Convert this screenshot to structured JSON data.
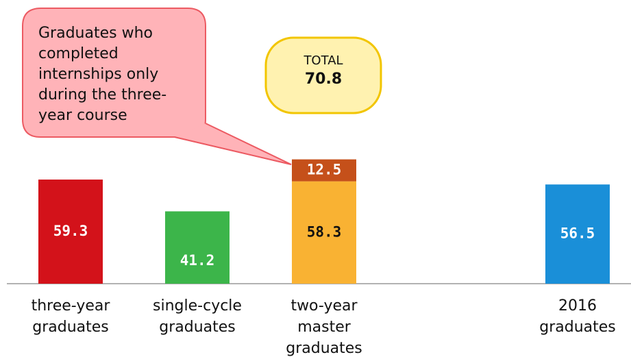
{
  "chart_data": {
    "type": "stacked_bar",
    "categories": [
      "three-year graduates",
      "single-cycle graduates",
      "two-year master graduates",
      null,
      "2016 graduates"
    ],
    "series": [
      {
        "colors": [
          "#d3121a",
          "#3cb54a",
          "#f9b233",
          null,
          "#1a8fd8"
        ],
        "label_colors": [
          "#ffffff",
          "#ffffff",
          "#111111",
          null,
          "#ffffff"
        ],
        "values": [
          59.3,
          41.2,
          58.3,
          null,
          56.5
        ]
      },
      {
        "name": "Graduates who completed internships only during the three-year course",
        "color": "#c5501a",
        "label_color": "#ffffff",
        "values": [
          null,
          null,
          12.5,
          null,
          null
        ]
      }
    ],
    "total": {
      "label": "TOTAL",
      "value": 70.8
    },
    "ylim": [
      0,
      80
    ]
  }
}
